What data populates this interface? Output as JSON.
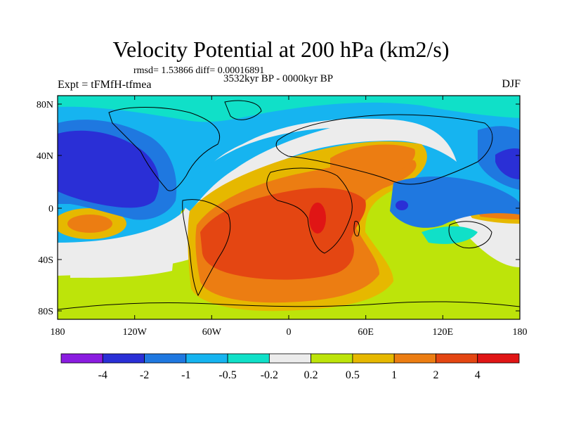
{
  "title": "Velocity Potential at 200 hPa (km2/s)",
  "stats_line": "rmsd= 1.53866 diff= 0.00016891",
  "experiment": "Expt = tFMfH-tfmea",
  "period": "3532kyr BP - 0000kyr BP",
  "season": "DJF",
  "lat_ticks": [
    "80N",
    "40N",
    "0",
    "40S",
    "80S"
  ],
  "lon_ticks": [
    "180",
    "120W",
    "60W",
    "0",
    "60E",
    "120E",
    "180"
  ],
  "colorbar": {
    "levels": [
      "-4",
      "-2",
      "-1",
      "-0.5",
      "-0.2",
      "0.2",
      "0.5",
      "1",
      "2",
      "4"
    ],
    "colors": [
      "#8a1ce0",
      "#2a2fd6",
      "#1f78e0",
      "#16b4f0",
      "#10e0c8",
      "#ececec",
      "#bde40a",
      "#e6b800",
      "#ec7d12",
      "#e44612",
      "#e01515"
    ]
  },
  "field_colors": {
    "strong_negative": "#2a2fd6",
    "negative": "#1f78e0",
    "weak_negative": "#16b4f0",
    "near_zero_negative": "#10e0c8",
    "near_zero": "#ececec",
    "weak_positive": "#bde40a",
    "positive": "#e6b800",
    "moderate_positive": "#ec7d12",
    "strong_positive": "#e44612",
    "max_positive": "#e01515"
  }
}
